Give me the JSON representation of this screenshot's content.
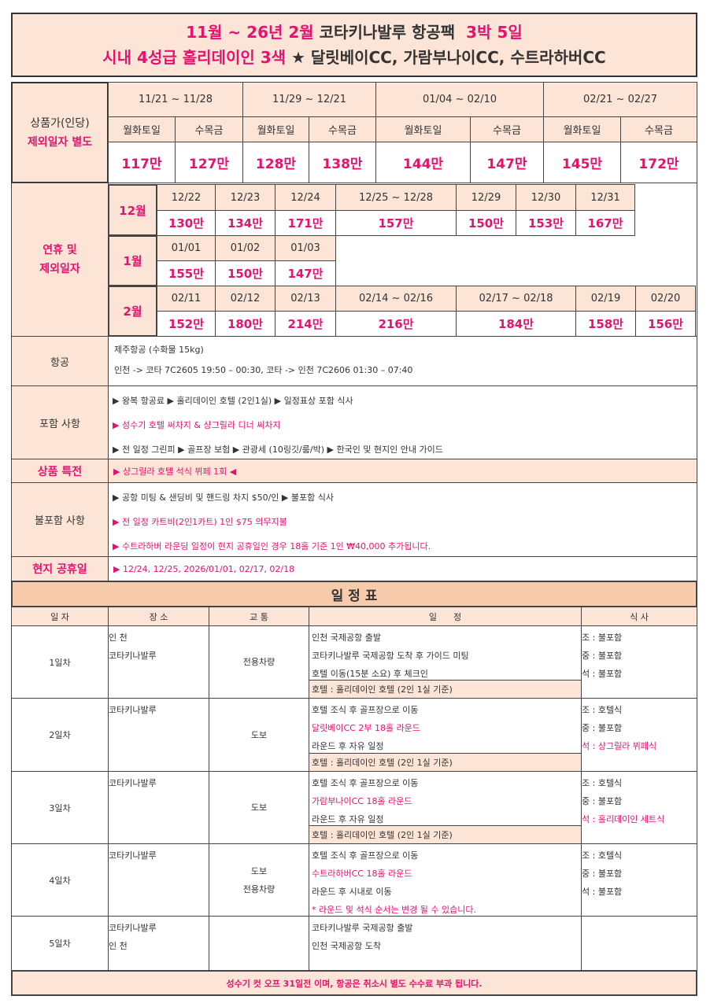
{
  "title": {
    "l1a": "11월 ~ 26년 2월",
    "l1b": "코타키나발루 항공팩",
    "l1c": "3박 5일",
    "l2a": "시내 4성급 홀리데이인 3색",
    "l2b": "★ 달릿베이CC, 가람부나이CC, 수트라하버CC"
  },
  "price": {
    "label1": "상품가(인당)",
    "label2": "제외일자 별도",
    "periods": [
      "11/21 ~ 11/28",
      "11/29 ~ 12/21",
      "01/04 ~ 02/10",
      "02/21 ~ 02/27"
    ],
    "days": [
      "월화토일",
      "수목금"
    ],
    "values": [
      "117만",
      "127만",
      "128만",
      "138만",
      "144만",
      "147만",
      "145만",
      "172만"
    ]
  },
  "holiday": {
    "label": "연휴 및\n제외일자",
    "dec": {
      "month": "12월",
      "dates": [
        "12/22",
        "12/23",
        "12/24",
        "12/25 ~ 12/28",
        "12/29",
        "12/30",
        "12/31"
      ],
      "prices": [
        "130만",
        "134만",
        "171만",
        "157만",
        "150만",
        "153만",
        "167만"
      ]
    },
    "jan": {
      "month": "1월",
      "dates": [
        "01/01",
        "01/02",
        "01/03"
      ],
      "prices": [
        "155만",
        "150만",
        "147만"
      ]
    },
    "feb": {
      "month": "2월",
      "dates": [
        "02/11",
        "02/12",
        "02/13",
        "02/14 ~ 02/16",
        "02/17 ~ 02/18",
        "02/19",
        "02/20"
      ],
      "prices": [
        "152만",
        "180만",
        "214만",
        "216만",
        "184만",
        "158만",
        "156만"
      ]
    }
  },
  "info": {
    "air": {
      "label": "항공",
      "lines": [
        "제주항공 (수화물 15kg)",
        "인천 -> 코타 7C2605 19:50 – 00:30, 코타 -> 인천 7C2606 01:30 – 07:40"
      ]
    },
    "incl": {
      "label": "포함 사항",
      "lines": [
        "▶ 왕복 항공료 ▶ 홀리데이인 호텔 (2인1실) ▶ 일정표상 포함 식사",
        "▶ 성수기 호텔 써차지 & 샹그릴라 디너 써차지",
        "▶ 전 일정 그린피 ▶ 골프장 보험 ▶ 관광세 (10링깃/룸/박)  ▶ 한국인 및 현지인 안내 가이드"
      ]
    },
    "special": {
      "label": "상품 특전",
      "text": "▶ 샹그릴라 호텔 석식 뷔페 1회 ◀"
    },
    "excl": {
      "label": "불포함 사항",
      "lines": [
        "▶ 공항 미팅 & 샌딩비 및 핸드링 차지 $50/인 ▶ 불포함 식사",
        "▶ 전 일정 카트비(2인1카트) 1인 $75 의무지불",
        "▶ 수트라하버 라운딩 일정이 현지 공휴일인 경우 18홀 기준 1인 ₩40,000 추가됩니다."
      ]
    },
    "local": {
      "label": "현지 공휴일",
      "text": "▶ 12/24, 12/25, 2026/01/01, 02/17, 02/18"
    }
  },
  "schedule": {
    "title": "일 정 표",
    "headers": [
      "일 자",
      "장 소",
      "교 통",
      "일      정",
      "식 사"
    ],
    "days": [
      {
        "day": "1일차",
        "place": [
          "인 천",
          "코타키나발루"
        ],
        "trans": [
          "전용차량"
        ],
        "items": [
          "인천 국제공항 출발",
          "코타키나발루 국제공항 도착 후 가이드 미팅",
          "호텔 이동(15분 소요) 후 체크인"
        ],
        "hotel": "호텔 : 홀리데이인 호텔 (2인 1실 기준)",
        "meals": [
          "조 : 불포함",
          "중 : 불포함",
          "석 : 불포함"
        ]
      },
      {
        "day": "2일차",
        "place": [
          "코타키나발루"
        ],
        "trans": [
          "도보"
        ],
        "items": [
          "호텔 조식 후 골프장으로 이동",
          "달릿베이CC 2부 18홀 라운드",
          "라운드 후 자유 일정"
        ],
        "hotel": "호텔 : 홀리데이인 호텔 (2인 1실 기준)",
        "meals": [
          "조 : 호텔식",
          "중 : 불포함",
          "석 : 샹그릴라 뷔페식"
        ]
      },
      {
        "day": "3일차",
        "place": [
          "코타키나발루"
        ],
        "trans": [
          "도보"
        ],
        "items": [
          "호텔 조식 후 골프장으로 이동",
          "가람부나이CC 18홀 라운드",
          "라운드 후 자유 일정"
        ],
        "hotel": "호텔 : 홀리데이인 호텔 (2인 1실 기준)",
        "meals": [
          "조 : 호텔식",
          "중 : 불포함",
          "석 : 홀리데이인 세트식"
        ]
      },
      {
        "day": "4일차",
        "place": [
          "코타키나발루"
        ],
        "trans": [
          "도보",
          "전용차량"
        ],
        "items": [
          "호텔 조식 후 골프장으로 이동",
          "수트라하버CC 18홀 라운드",
          "라운드 후 시내로 이동",
          "* 라운드 및 석식 순서는 변경 될 수 있습니다."
        ],
        "meals": [
          "조 : 호텔식",
          "중 : 불포함",
          "석 : 불포함"
        ]
      },
      {
        "day": "5일차",
        "place": [
          "코타키나발루",
          "인 천"
        ],
        "trans": [],
        "items": [
          "코타키나발루 국제공항 출발",
          "인천 국제공항 도착"
        ],
        "meals": []
      }
    ],
    "footer": "성수기 컷 오프 31일전 이며, 항공은 취소시 별도 수수료 부과 됩니다."
  },
  "colors": {
    "accent": "#e5136f",
    "panel": "#fce4d6",
    "header": "#f8cbad"
  }
}
